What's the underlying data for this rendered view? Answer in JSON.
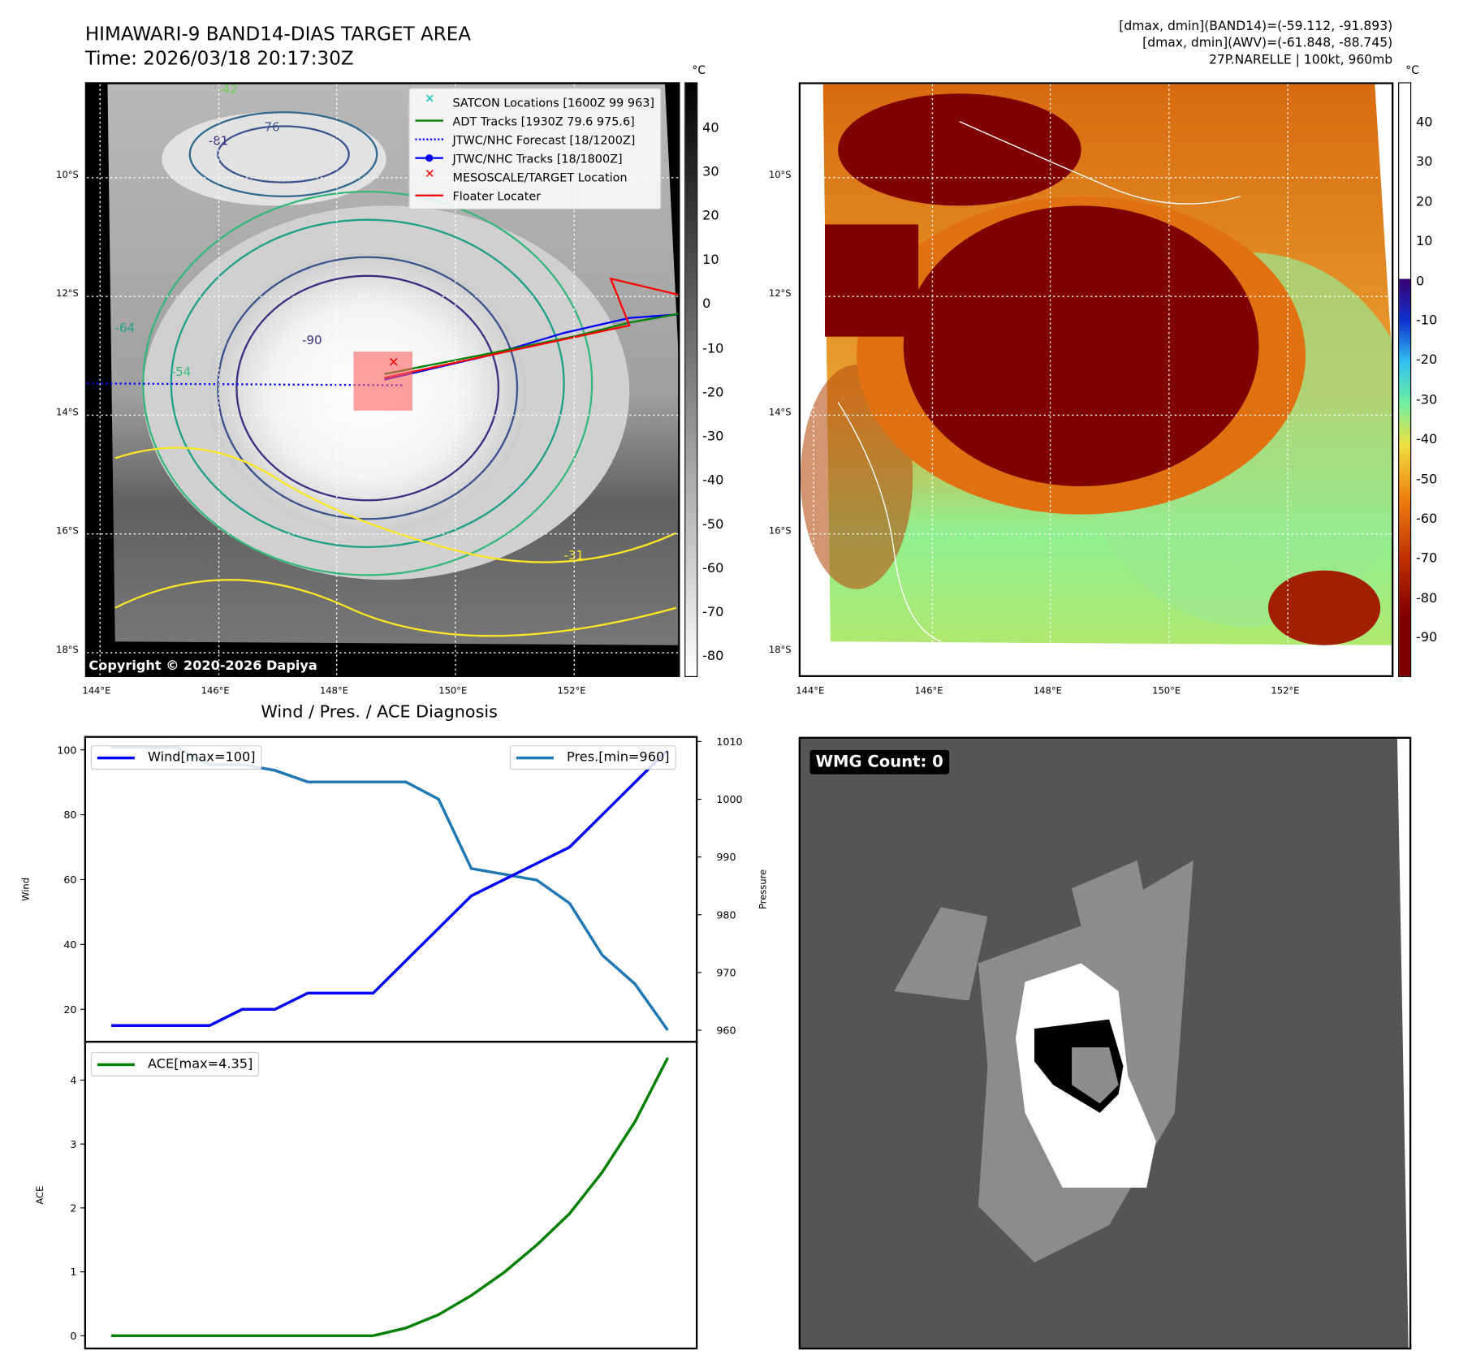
{
  "header": {
    "title": "HIMAWARI-9 BAND14-DIAS TARGET AREA",
    "time": "Time: 2026/03/18 20:17:30Z",
    "info_line1": "[dmax, dmin](BAND14)=(-59.112, -91.893)",
    "info_line2": "[dmax, dmin](AWV)=(-61.848, -88.745)",
    "info_line3": "27P.NARELLE | 100kt, 960mb"
  },
  "map": {
    "lat_labels": [
      "10°S",
      "12°S",
      "14°S",
      "16°S",
      "18°S"
    ],
    "lon_labels": [
      "144°E",
      "146°E",
      "148°E",
      "150°E",
      "152°E"
    ],
    "contour_labels": [
      "-76",
      "-81",
      "-64",
      "-54",
      "-42",
      "-90",
      "-31"
    ],
    "copyright": "Copyright © 2020-2026 Dapiya",
    "legend": [
      {
        "label": "SATCON Locations [1600Z 99 963]",
        "color": "#00c0c0"
      },
      {
        "label": "ADT Tracks [1930Z 79.6 975.6]",
        "color": "#008000"
      },
      {
        "label": "JTWC/NHC Forecast [18/1200Z]",
        "color": "#0000ff"
      },
      {
        "label": "JTWC/NHC Tracks [18/1800Z]",
        "color": "#0000ff"
      },
      {
        "label": "MESOSCALE/TARGET Location",
        "color": "#ff0000"
      },
      {
        "label": "Floater Locater",
        "color": "#ff0000"
      }
    ]
  },
  "colorbar1": {
    "unit": "°C",
    "ticks": [
      "40",
      "30",
      "20",
      "10",
      "0",
      "-10",
      "-20",
      "-30",
      "-40",
      "-50",
      "-60",
      "-70",
      "-80"
    ]
  },
  "colorbar2": {
    "unit": "°C",
    "ticks": [
      "40",
      "30",
      "20",
      "10",
      "0",
      "-10",
      "-20",
      "-30",
      "-40",
      "-50",
      "-60",
      "-70",
      "-80",
      "-90"
    ]
  },
  "wmg": {
    "label": "WMG Count: 0"
  },
  "chart_data": {
    "type": "line",
    "title": "Wind / Pres. / ACE Diagnosis",
    "x": [
      0,
      1,
      2,
      3,
      4,
      5,
      6,
      7,
      8,
      9,
      10,
      11,
      12,
      13,
      14,
      15,
      16,
      17
    ],
    "upper": {
      "ylabel": "Wind",
      "y2label": "Pressure",
      "ylim": [
        10,
        104
      ],
      "y2lim": [
        958,
        1010.8
      ],
      "yticks": [
        20,
        40,
        60,
        80,
        100
      ],
      "y2ticks": [
        960,
        970,
        980,
        990,
        1000,
        1010
      ],
      "series": [
        {
          "name": "Wind[max=100]",
          "color": "#0000ff",
          "axis": "left",
          "values": [
            15,
            15,
            15,
            15,
            20,
            20,
            25,
            25,
            25,
            35,
            45,
            55,
            60,
            65,
            70,
            80,
            90,
            100
          ]
        },
        {
          "name": "Pres.[min=960]",
          "color": "#1f77b4",
          "axis": "right",
          "values": [
            1009,
            1009,
            1009,
            1006,
            1006,
            1005,
            1003,
            1003,
            1003,
            1003,
            1000,
            988,
            987,
            986,
            982,
            973,
            968,
            960
          ]
        }
      ]
    },
    "lower": {
      "ylabel": "ACE",
      "ylim": [
        -0.2,
        4.6
      ],
      "yticks": [
        0,
        1,
        2,
        3,
        4
      ],
      "series": [
        {
          "name": "ACE[max=4.35]",
          "color": "#008000",
          "values": [
            0,
            0,
            0,
            0,
            0,
            0,
            0,
            0,
            0,
            0.12,
            0.33,
            0.63,
            0.99,
            1.42,
            1.91,
            2.56,
            3.35,
            4.35
          ]
        }
      ]
    }
  }
}
